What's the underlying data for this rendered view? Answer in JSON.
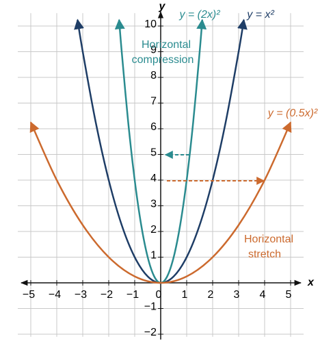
{
  "chart_data": {
    "type": "line",
    "x_label": "x",
    "y_label": "y",
    "xlim": [
      -5.5,
      5.5
    ],
    "ylim": [
      -2.1,
      10.5
    ],
    "xticks": [
      {
        "value": -5,
        "label": "−5"
      },
      {
        "value": -4,
        "label": "−4"
      },
      {
        "value": -3,
        "label": "−3"
      },
      {
        "value": -2,
        "label": "−2"
      },
      {
        "value": -1,
        "label": "−1"
      },
      0,
      1,
      2,
      3,
      4,
      5
    ],
    "yticks": [
      {
        "value": -2,
        "label": "−2"
      },
      {
        "value": -1,
        "label": "−1"
      },
      1,
      2,
      3,
      4,
      5,
      6,
      7,
      8,
      9,
      10
    ],
    "grid": true,
    "series": [
      {
        "name": "y = x²",
        "color": "#1e3d66",
        "x": [
          -3.2,
          -3,
          -2.5,
          -2,
          -1.5,
          -1,
          -0.5,
          0,
          0.5,
          1,
          1.5,
          2,
          2.5,
          3,
          3.2
        ],
        "values": [
          10.24,
          9,
          6.25,
          4,
          2.25,
          1,
          0.25,
          0,
          0.25,
          1,
          2.25,
          4,
          6.25,
          9,
          10.24
        ]
      },
      {
        "name": "y = (2x)²",
        "color": "#2a8b8f",
        "x": [
          -1.6,
          -1.5,
          -1.25,
          -1,
          -0.75,
          -0.5,
          -0.25,
          0,
          0.25,
          0.5,
          0.75,
          1,
          1.25,
          1.5,
          1.6
        ],
        "values": [
          10.24,
          9,
          6.25,
          4,
          2.25,
          1,
          0.25,
          0,
          0.25,
          1,
          2.25,
          4,
          6.25,
          9,
          10.24
        ]
      },
      {
        "name": "y = (0.5x)²",
        "color": "#cc6a2e",
        "x": [
          -5,
          -4,
          -3,
          -2,
          -1,
          0,
          1,
          2,
          3,
          4,
          5
        ],
        "values": [
          6.25,
          4,
          2.25,
          1,
          0.25,
          0,
          0.25,
          1,
          2.25,
          4,
          6.25
        ]
      }
    ],
    "annotations": [
      "Horizontal",
      "compression",
      "Horizontal",
      "stretch"
    ]
  }
}
